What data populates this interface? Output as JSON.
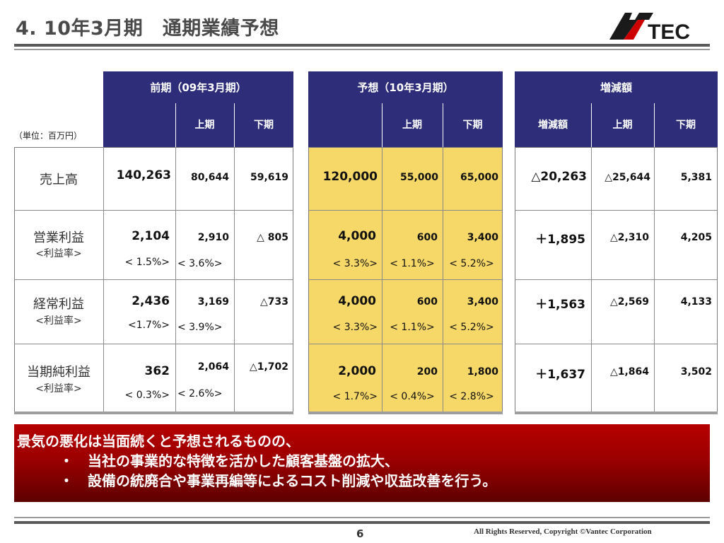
{
  "title": "4. 10年3月期　通期業績予想",
  "logo_text": "VANTEC",
  "unit_label": "（単位：百万円）",
  "headers": {
    "prev": "前期（09年3月期）",
    "forecast": "予想（10年3月期）",
    "change": "増減額",
    "first_half": "上期",
    "second_half": "下期",
    "change_total": "増減額"
  },
  "rows": [
    {
      "label": "売上高",
      "sub": "",
      "prev_total": "140,263",
      "prev_h1": "80,644",
      "prev_h2": "59,619",
      "fc_total": "120,000",
      "fc_h1": "55,000",
      "fc_h2": "65,000",
      "chg_total": "△20,263",
      "chg_h1": "△25,644",
      "chg_h2": "5,381",
      "prev_total_pct": "",
      "prev_h1_pct": "",
      "fc_total_pct": "",
      "fc_h1_pct": "",
      "fc_h2_pct": ""
    },
    {
      "label": "営業利益",
      "sub": "<利益率>",
      "prev_total": "2,104",
      "prev_h1": "2,910",
      "prev_h2": "△ 805",
      "fc_total": "4,000",
      "fc_h1": "600",
      "fc_h2": "3,400",
      "chg_total": "＋1,895",
      "chg_h1": "△2,310",
      "chg_h2": "4,205",
      "prev_total_pct": "< 1.5%>",
      "prev_h1_pct": "< 3.6%>",
      "fc_total_pct": "< 3.3%>",
      "fc_h1_pct": "< 1.1%>",
      "fc_h2_pct": "< 5.2%>"
    },
    {
      "label": "経常利益",
      "sub": "<利益率>",
      "prev_total": "2,436",
      "prev_h1": "3,169",
      "prev_h2": "△733",
      "fc_total": "4,000",
      "fc_h1": "600",
      "fc_h2": "3,400",
      "chg_total": "＋1,563",
      "chg_h1": "△2,569",
      "chg_h2": "4,133",
      "prev_total_pct": "<1.7%>",
      "prev_h1_pct": "< 3.9%>",
      "fc_total_pct": "< 3.3%>",
      "fc_h1_pct": "< 1.1%>",
      "fc_h2_pct": "< 5.2%>"
    },
    {
      "label": "当期純利益",
      "sub": "<利益率>",
      "prev_total": "362",
      "prev_h1": "2,064",
      "prev_h2": "△1,702",
      "fc_total": "2,000",
      "fc_h1": "200",
      "fc_h2": "1,800",
      "chg_total": "＋1,637",
      "chg_h1": "△1,864",
      "chg_h2": "3,502",
      "prev_total_pct": "< 0.3%>",
      "prev_h1_pct": "< 2.6%>",
      "fc_total_pct": "< 1.7%>",
      "fc_h1_pct": "< 0.4%>",
      "fc_h2_pct": "< 2.8%>"
    }
  ],
  "message": {
    "line1": "景気の悪化は当面続くと予想されるものの、",
    "line2": "・　当社の事業的な特徴を活かした顧客基盤の拡大、",
    "line3": "・　設備の統廃合や事業再編等によるコスト削減や収益改善を行う。"
  },
  "page_number": "6",
  "copyright": "All Rights Reserved, Copyright ©Vantec Corporation",
  "colors": {
    "header_navy": "#2d2d7a",
    "forecast_yellow": "#f6d868",
    "banner_red": "#b50000"
  }
}
